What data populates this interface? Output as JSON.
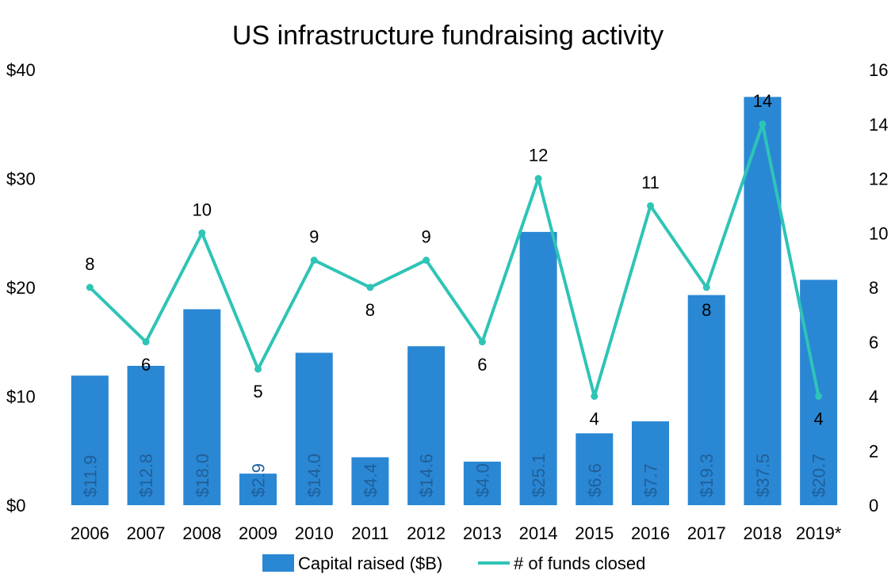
{
  "chart_data": {
    "type": "bar",
    "title": "US infrastructure fundraising activity",
    "categories": [
      "2006",
      "2007",
      "2008",
      "2009",
      "2010",
      "2011",
      "2012",
      "2013",
      "2014",
      "2015",
      "2016",
      "2017",
      "2018",
      "2019*"
    ],
    "series": [
      {
        "name": "Capital raised ($B)",
        "type": "bar",
        "axis": "left",
        "color": "#2a87d4",
        "values": [
          11.9,
          12.8,
          18.0,
          2.9,
          14.0,
          4.4,
          14.6,
          4.0,
          25.1,
          6.6,
          7.7,
          19.3,
          37.5,
          20.7
        ],
        "labels": [
          "$11.9",
          "$12.8",
          "$18.0",
          "$2.9",
          "$14.0",
          "$4.4",
          "$14.6",
          "$4.0",
          "$25.1",
          "$6.6",
          "$7.7",
          "$19.3",
          "$37.5",
          "$20.7"
        ]
      },
      {
        "name": "# of funds closed",
        "type": "line",
        "axis": "right",
        "color": "#2ec4b6",
        "values": [
          8,
          6,
          10,
          5,
          9,
          8,
          9,
          6,
          12,
          4,
          11,
          8,
          14,
          4
        ],
        "labels": [
          "8",
          "6",
          "10",
          "5",
          "9",
          "8",
          "9",
          "6",
          "12",
          "4",
          "11",
          "8",
          "14",
          "4"
        ]
      }
    ],
    "y_left": {
      "ylim": [
        0,
        40
      ],
      "ticks": [
        "$0",
        "$10",
        "$20",
        "$30",
        "$40"
      ],
      "tick_values": [
        0,
        10,
        20,
        30,
        40
      ]
    },
    "y_right": {
      "ylim": [
        0,
        16
      ],
      "ticks": [
        "0",
        "2",
        "4",
        "6",
        "8",
        "10",
        "12",
        "14",
        "16"
      ],
      "tick_values": [
        0,
        2,
        4,
        6,
        8,
        10,
        12,
        14,
        16
      ]
    },
    "grid": false,
    "legend": "bottom"
  }
}
